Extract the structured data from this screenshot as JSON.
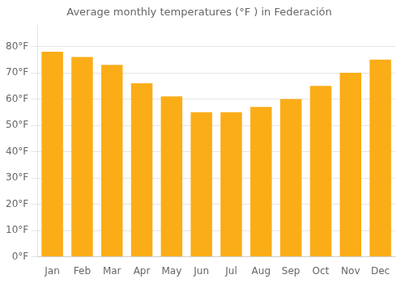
{
  "chart_data": {
    "type": "bar",
    "title": "Average monthly temperatures (°F ) in Federación",
    "categories": [
      "Jan",
      "Feb",
      "Mar",
      "Apr",
      "May",
      "Jun",
      "Jul",
      "Aug",
      "Sep",
      "Oct",
      "Nov",
      "Dec"
    ],
    "values": [
      78,
      76,
      73,
      66,
      61,
      55,
      55,
      57,
      60,
      65,
      70,
      75
    ],
    "color": "#FBAD18",
    "ylim": [
      0,
      88
    ],
    "yticks": [
      {
        "value": 0,
        "label": "0°F"
      },
      {
        "value": 10,
        "label": "10°F"
      },
      {
        "value": 20,
        "label": "20°F"
      },
      {
        "value": 30,
        "label": "30°F"
      },
      {
        "value": 40,
        "label": "40°F"
      },
      {
        "value": 50,
        "label": "50°F"
      },
      {
        "value": 60,
        "label": "60°F"
      },
      {
        "value": 70,
        "label": "70°F"
      },
      {
        "value": 80,
        "label": "80°F"
      }
    ],
    "grid": true
  }
}
